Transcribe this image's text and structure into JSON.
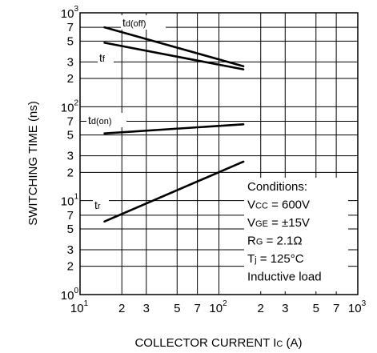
{
  "chart_data": {
    "type": "line",
    "title": "",
    "xlabel": "COLLECTOR CURRENT  Ic (A)",
    "xlabel_main": "COLLECTOR CURRENT  I",
    "xlabel_sub": "C",
    "xlabel_unit": " (A)",
    "ylabel": "SWITCHING TIME (ns)",
    "xscale": "log",
    "yscale": "log",
    "xlim": [
      10,
      1000
    ],
    "ylim": [
      1,
      1000
    ],
    "grid": true,
    "x_ticks": [
      {
        "value": 10,
        "base": "10",
        "exp": "1"
      },
      {
        "value": 20,
        "label": "2"
      },
      {
        "value": 30,
        "label": "3"
      },
      {
        "value": 50,
        "label": "5"
      },
      {
        "value": 70,
        "label": "7"
      },
      {
        "value": 100,
        "base": "10",
        "exp": "2"
      },
      {
        "value": 200,
        "label": "2"
      },
      {
        "value": 300,
        "label": "3"
      },
      {
        "value": 500,
        "label": "5"
      },
      {
        "value": 700,
        "label": "7"
      },
      {
        "value": 1000,
        "base": "10",
        "exp": "3"
      }
    ],
    "y_ticks": [
      {
        "value": 1,
        "base": "10",
        "exp": "0"
      },
      {
        "value": 2,
        "label": "2"
      },
      {
        "value": 3,
        "label": "3"
      },
      {
        "value": 5,
        "label": "5"
      },
      {
        "value": 7,
        "label": "7"
      },
      {
        "value": 10,
        "base": "10",
        "exp": "1"
      },
      {
        "value": 20,
        "label": "2"
      },
      {
        "value": 30,
        "label": "3"
      },
      {
        "value": 50,
        "label": "5"
      },
      {
        "value": 70,
        "label": "7"
      },
      {
        "value": 100,
        "base": "10",
        "exp": "2"
      },
      {
        "value": 200,
        "label": "2"
      },
      {
        "value": 300,
        "label": "3"
      },
      {
        "value": 500,
        "label": "5"
      },
      {
        "value": 700,
        "label": "7"
      },
      {
        "value": 1000,
        "base": "10",
        "exp": "3"
      }
    ],
    "series": [
      {
        "name": "td(off)",
        "label_main": "t",
        "label_sub": "d(off)",
        "x": [
          15,
          150
        ],
        "y": [
          700,
          270
        ]
      },
      {
        "name": "tf",
        "label_main": "t",
        "label_sub": "f",
        "x": [
          15,
          150
        ],
        "y": [
          480,
          250
        ]
      },
      {
        "name": "td(on)",
        "label_main": "t",
        "label_sub": "d(on)",
        "x": [
          15,
          150
        ],
        "y": [
          52,
          65
        ]
      },
      {
        "name": "tr",
        "label_main": "t",
        "label_sub": "r",
        "x": [
          15,
          150
        ],
        "y": [
          6,
          26
        ]
      }
    ],
    "conditions": {
      "heading": "Conditions:",
      "lines": [
        {
          "main": "V",
          "sub": "CC",
          "rest": " = 600V"
        },
        {
          "main": "V",
          "sub": "GE",
          "rest": " = ±15V"
        },
        {
          "main": "R",
          "sub": "G",
          "rest": " = 2.1Ω"
        },
        {
          "main": "T",
          "sub": "j",
          "rest": " = 125°C"
        }
      ],
      "footer": "Inductive load"
    },
    "colors": {
      "line": "#000000",
      "grid": "#000000",
      "background": "#ffffff"
    }
  }
}
